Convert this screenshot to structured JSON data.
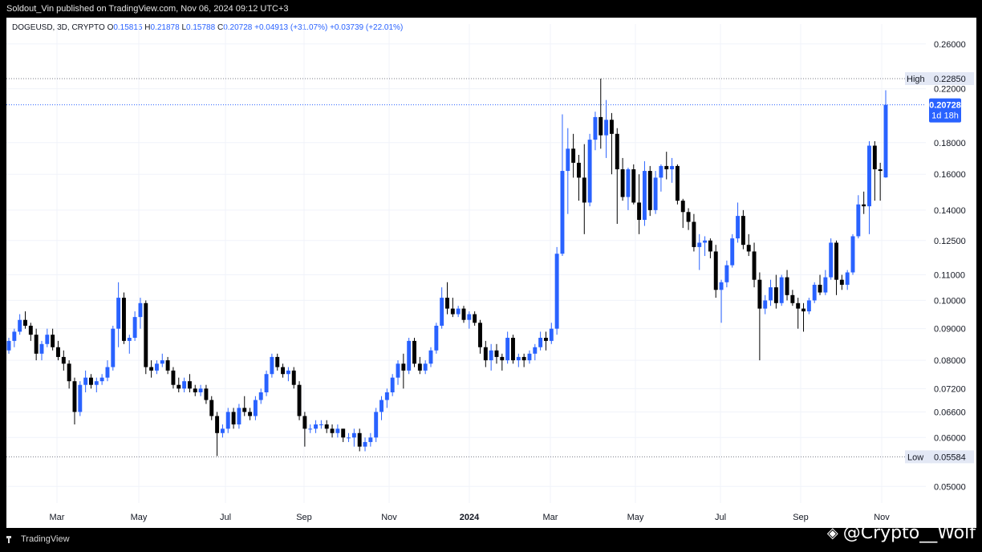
{
  "header": {
    "published": "Soldout_Vin published on TradingView.com, Nov 06, 2024 09:12 UTC+3"
  },
  "legend": {
    "symbol": "DOGEUSD, 3D, CRYPTO",
    "o_label": "O",
    "o_value": "0.15815",
    "h_label": "H",
    "h_value": "0.21878",
    "l_label": "L",
    "l_value": "0.15788",
    "c_label": "C",
    "c_value": "0.20728",
    "change": "+0.04913 (+31.07%)",
    "extra": "+0.03739 (+22.01%)"
  },
  "footer": {
    "brand": "TradingView",
    "watermark": "@Crypto__Wolf"
  },
  "colors": {
    "up": "#2962ff",
    "down": "#000000",
    "grid": "#f0f3fa",
    "axis_text": "#131722"
  },
  "chart_data": {
    "type": "candlestick",
    "symbol": "DOGEUSD",
    "interval": "3D",
    "y_scale": "log",
    "ylim": [
      0.047,
      0.28
    ],
    "y_ticks": [
      "0.26000",
      "0.22000",
      "0.18000",
      "0.16000",
      "0.14000",
      "0.12500",
      "0.11000",
      "0.10000",
      "0.09000",
      "0.08000",
      "0.07200",
      "0.06600",
      "0.06000",
      "0.05000"
    ],
    "x_ticks": [
      "Mar",
      "May",
      "Jul",
      "Sep",
      "Nov",
      "2024",
      "Mar",
      "May",
      "Jul",
      "Sep",
      "Nov"
    ],
    "high_marker": {
      "label": "High",
      "value": 0.2285,
      "text": "0.22850"
    },
    "low_marker": {
      "label": "Low",
      "value": 0.05584,
      "text": "0.05584"
    },
    "last_price": {
      "value": 0.20728,
      "text": "0.20728",
      "countdown": "1d 18h"
    },
    "ohlc": [
      [
        0.083,
        0.087,
        0.082,
        0.086
      ],
      [
        0.086,
        0.09,
        0.084,
        0.089
      ],
      [
        0.089,
        0.095,
        0.088,
        0.093
      ],
      [
        0.093,
        0.096,
        0.09,
        0.091
      ],
      [
        0.091,
        0.092,
        0.086,
        0.088
      ],
      [
        0.088,
        0.09,
        0.08,
        0.082
      ],
      [
        0.082,
        0.086,
        0.08,
        0.085
      ],
      [
        0.085,
        0.09,
        0.084,
        0.088
      ],
      [
        0.088,
        0.09,
        0.083,
        0.084
      ],
      [
        0.084,
        0.086,
        0.08,
        0.081
      ],
      [
        0.081,
        0.083,
        0.077,
        0.079
      ],
      [
        0.079,
        0.08,
        0.072,
        0.074
      ],
      [
        0.074,
        0.075,
        0.063,
        0.066
      ],
      [
        0.066,
        0.074,
        0.065,
        0.073
      ],
      [
        0.073,
        0.077,
        0.071,
        0.075
      ],
      [
        0.075,
        0.076,
        0.072,
        0.073
      ],
      [
        0.073,
        0.075,
        0.071,
        0.074
      ],
      [
        0.074,
        0.076,
        0.073,
        0.075
      ],
      [
        0.075,
        0.08,
        0.074,
        0.078
      ],
      [
        0.078,
        0.091,
        0.077,
        0.09
      ],
      [
        0.09,
        0.107,
        0.084,
        0.101
      ],
      [
        0.101,
        0.103,
        0.085,
        0.086
      ],
      [
        0.086,
        0.088,
        0.082,
        0.087
      ],
      [
        0.087,
        0.096,
        0.086,
        0.094
      ],
      [
        0.094,
        0.101,
        0.09,
        0.099
      ],
      [
        0.099,
        0.1,
        0.076,
        0.078
      ],
      [
        0.078,
        0.08,
        0.075,
        0.077
      ],
      [
        0.077,
        0.08,
        0.076,
        0.079
      ],
      [
        0.079,
        0.082,
        0.078,
        0.08
      ],
      [
        0.08,
        0.081,
        0.076,
        0.077
      ],
      [
        0.077,
        0.078,
        0.072,
        0.073
      ],
      [
        0.073,
        0.075,
        0.071,
        0.072
      ],
      [
        0.072,
        0.075,
        0.071,
        0.074
      ],
      [
        0.074,
        0.076,
        0.071,
        0.072
      ],
      [
        0.072,
        0.073,
        0.07,
        0.071
      ],
      [
        0.071,
        0.073,
        0.07,
        0.072
      ],
      [
        0.072,
        0.073,
        0.068,
        0.069
      ],
      [
        0.069,
        0.07,
        0.064,
        0.065
      ],
      [
        0.065,
        0.066,
        0.056,
        0.061
      ],
      [
        0.061,
        0.063,
        0.06,
        0.062
      ],
      [
        0.062,
        0.067,
        0.061,
        0.066
      ],
      [
        0.066,
        0.067,
        0.062,
        0.063
      ],
      [
        0.063,
        0.068,
        0.062,
        0.067
      ],
      [
        0.067,
        0.07,
        0.065,
        0.066
      ],
      [
        0.066,
        0.067,
        0.064,
        0.065
      ],
      [
        0.065,
        0.07,
        0.064,
        0.069
      ],
      [
        0.069,
        0.072,
        0.068,
        0.071
      ],
      [
        0.071,
        0.077,
        0.07,
        0.076
      ],
      [
        0.076,
        0.082,
        0.075,
        0.081
      ],
      [
        0.081,
        0.082,
        0.077,
        0.078
      ],
      [
        0.078,
        0.079,
        0.075,
        0.076
      ],
      [
        0.076,
        0.078,
        0.074,
        0.077
      ],
      [
        0.077,
        0.078,
        0.072,
        0.073
      ],
      [
        0.073,
        0.074,
        0.064,
        0.065
      ],
      [
        0.065,
        0.066,
        0.058,
        0.062
      ],
      [
        0.062,
        0.063,
        0.061,
        0.062
      ],
      [
        0.062,
        0.064,
        0.061,
        0.063
      ],
      [
        0.063,
        0.064,
        0.062,
        0.063
      ],
      [
        0.063,
        0.064,
        0.061,
        0.062
      ],
      [
        0.062,
        0.063,
        0.06,
        0.061
      ],
      [
        0.061,
        0.063,
        0.06,
        0.062
      ],
      [
        0.062,
        0.062,
        0.059,
        0.06
      ],
      [
        0.06,
        0.061,
        0.059,
        0.06
      ],
      [
        0.06,
        0.062,
        0.058,
        0.061
      ],
      [
        0.061,
        0.062,
        0.057,
        0.058
      ],
      [
        0.058,
        0.06,
        0.057,
        0.059
      ],
      [
        0.059,
        0.061,
        0.058,
        0.06
      ],
      [
        0.06,
        0.067,
        0.059,
        0.066
      ],
      [
        0.066,
        0.07,
        0.064,
        0.069
      ],
      [
        0.069,
        0.072,
        0.067,
        0.071
      ],
      [
        0.071,
        0.076,
        0.07,
        0.075
      ],
      [
        0.075,
        0.08,
        0.073,
        0.079
      ],
      [
        0.079,
        0.082,
        0.072,
        0.077
      ],
      [
        0.077,
        0.087,
        0.076,
        0.086
      ],
      [
        0.086,
        0.087,
        0.078,
        0.079
      ],
      [
        0.079,
        0.081,
        0.076,
        0.077
      ],
      [
        0.077,
        0.08,
        0.076,
        0.079
      ],
      [
        0.079,
        0.084,
        0.078,
        0.083
      ],
      [
        0.083,
        0.092,
        0.082,
        0.091
      ],
      [
        0.091,
        0.105,
        0.09,
        0.101
      ],
      [
        0.101,
        0.107,
        0.095,
        0.097
      ],
      [
        0.097,
        0.101,
        0.094,
        0.095
      ],
      [
        0.095,
        0.098,
        0.094,
        0.097
      ],
      [
        0.097,
        0.098,
        0.092,
        0.093
      ],
      [
        0.093,
        0.096,
        0.09,
        0.095
      ],
      [
        0.095,
        0.096,
        0.091,
        0.092
      ],
      [
        0.092,
        0.093,
        0.082,
        0.084
      ],
      [
        0.084,
        0.086,
        0.078,
        0.08
      ],
      [
        0.08,
        0.085,
        0.077,
        0.083
      ],
      [
        0.083,
        0.085,
        0.079,
        0.081
      ],
      [
        0.081,
        0.082,
        0.077,
        0.08
      ],
      [
        0.08,
        0.089,
        0.079,
        0.087
      ],
      [
        0.087,
        0.088,
        0.079,
        0.08
      ],
      [
        0.08,
        0.082,
        0.078,
        0.081
      ],
      [
        0.081,
        0.082,
        0.078,
        0.08
      ],
      [
        0.08,
        0.083,
        0.079,
        0.082
      ],
      [
        0.082,
        0.085,
        0.08,
        0.084
      ],
      [
        0.084,
        0.089,
        0.083,
        0.087
      ],
      [
        0.087,
        0.089,
        0.083,
        0.086
      ],
      [
        0.086,
        0.092,
        0.085,
        0.09
      ],
      [
        0.09,
        0.122,
        0.088,
        0.119
      ],
      [
        0.119,
        0.2,
        0.118,
        0.162
      ],
      [
        0.162,
        0.19,
        0.138,
        0.176
      ],
      [
        0.176,
        0.186,
        0.158,
        0.167
      ],
      [
        0.167,
        0.172,
        0.145,
        0.158
      ],
      [
        0.158,
        0.179,
        0.128,
        0.144
      ],
      [
        0.144,
        0.186,
        0.142,
        0.182
      ],
      [
        0.182,
        0.202,
        0.175,
        0.198
      ],
      [
        0.198,
        0.2285,
        0.176,
        0.185
      ],
      [
        0.185,
        0.211,
        0.17,
        0.196
      ],
      [
        0.196,
        0.201,
        0.16,
        0.186
      ],
      [
        0.186,
        0.19,
        0.133,
        0.163
      ],
      [
        0.163,
        0.17,
        0.145,
        0.147
      ],
      [
        0.147,
        0.164,
        0.14,
        0.163
      ],
      [
        0.163,
        0.166,
        0.143,
        0.144
      ],
      [
        0.144,
        0.16,
        0.128,
        0.135
      ],
      [
        0.135,
        0.168,
        0.132,
        0.162
      ],
      [
        0.162,
        0.165,
        0.137,
        0.14
      ],
      [
        0.14,
        0.162,
        0.138,
        0.158
      ],
      [
        0.158,
        0.166,
        0.15,
        0.165
      ],
      [
        0.165,
        0.174,
        0.157,
        0.163
      ],
      [
        0.163,
        0.17,
        0.155,
        0.165
      ],
      [
        0.165,
        0.166,
        0.143,
        0.145
      ],
      [
        0.145,
        0.146,
        0.131,
        0.139
      ],
      [
        0.139,
        0.141,
        0.13,
        0.134
      ],
      [
        0.134,
        0.138,
        0.12,
        0.122
      ],
      [
        0.122,
        0.128,
        0.112,
        0.124
      ],
      [
        0.124,
        0.127,
        0.118,
        0.125
      ],
      [
        0.125,
        0.126,
        0.117,
        0.12
      ],
      [
        0.12,
        0.123,
        0.101,
        0.104
      ],
      [
        0.104,
        0.108,
        0.092,
        0.107
      ],
      [
        0.107,
        0.116,
        0.105,
        0.114
      ],
      [
        0.114,
        0.128,
        0.113,
        0.126
      ],
      [
        0.126,
        0.144,
        0.124,
        0.137
      ],
      [
        0.137,
        0.14,
        0.121,
        0.123
      ],
      [
        0.123,
        0.128,
        0.118,
        0.12
      ],
      [
        0.12,
        0.124,
        0.105,
        0.108
      ],
      [
        0.108,
        0.111,
        0.08,
        0.097
      ],
      [
        0.097,
        0.102,
        0.095,
        0.1
      ],
      [
        0.1,
        0.108,
        0.098,
        0.105
      ],
      [
        0.105,
        0.11,
        0.097,
        0.099
      ],
      [
        0.099,
        0.11,
        0.098,
        0.109
      ],
      [
        0.109,
        0.112,
        0.1,
        0.102
      ],
      [
        0.102,
        0.104,
        0.098,
        0.099
      ],
      [
        0.099,
        0.101,
        0.09,
        0.097
      ],
      [
        0.097,
        0.099,
        0.089,
        0.096
      ],
      [
        0.096,
        0.101,
        0.095,
        0.1
      ],
      [
        0.1,
        0.107,
        0.099,
        0.106
      ],
      [
        0.106,
        0.11,
        0.102,
        0.103
      ],
      [
        0.103,
        0.112,
        0.102,
        0.109
      ],
      [
        0.109,
        0.126,
        0.108,
        0.124
      ],
      [
        0.124,
        0.125,
        0.102,
        0.108
      ],
      [
        0.108,
        0.11,
        0.104,
        0.106
      ],
      [
        0.106,
        0.112,
        0.104,
        0.111
      ],
      [
        0.111,
        0.128,
        0.11,
        0.127
      ],
      [
        0.127,
        0.148,
        0.126,
        0.143
      ],
      [
        0.143,
        0.15,
        0.138,
        0.142
      ],
      [
        0.142,
        0.181,
        0.128,
        0.178
      ],
      [
        0.178,
        0.181,
        0.145,
        0.163
      ],
      [
        0.163,
        0.167,
        0.145,
        0.162
      ],
      [
        0.15815,
        0.21878,
        0.15788,
        0.20728
      ]
    ]
  }
}
